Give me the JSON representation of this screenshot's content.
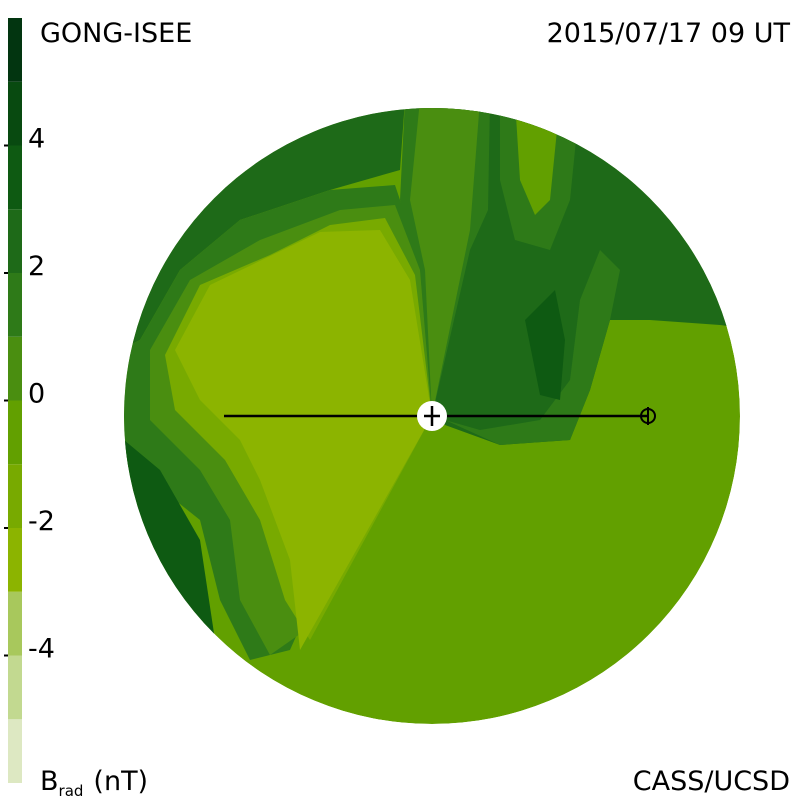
{
  "header": {
    "left": "GONG-ISEE",
    "right": "2015/07/17 09 UT"
  },
  "footer": {
    "right": "CASS/UCSD"
  },
  "colorbar": {
    "label": {
      "symbol": "B",
      "subscript": "rad",
      "unit": "(nT)"
    },
    "levels": [
      -6,
      -5,
      -4,
      -3,
      -2,
      -1,
      0,
      1,
      2,
      3,
      4,
      5,
      6
    ],
    "colors": [
      "#dde8c2",
      "#c2d990",
      "#a8c85c",
      "#8cb400",
      "#78aa00",
      "#62a000",
      "#4a8e10",
      "#2e7a18",
      "#1e6a18",
      "#0e5a12",
      "#084a10",
      "#023510"
    ],
    "ticks": [
      4,
      2,
      0,
      -2,
      -4
    ]
  }
}
